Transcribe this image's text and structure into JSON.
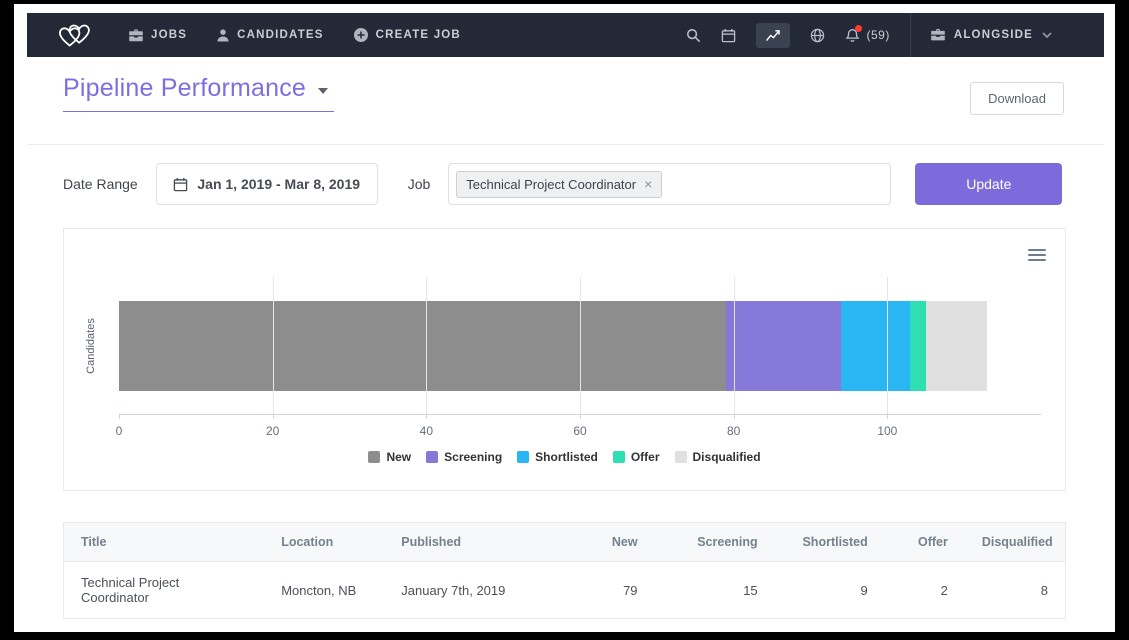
{
  "navbar": {
    "bg": "#232936",
    "logo": "alongside-logo",
    "items": [
      {
        "icon": "briefcase-icon",
        "label": "JOBS"
      },
      {
        "icon": "person-icon",
        "label": "CANDIDATES"
      },
      {
        "icon": "plus-circle-icon",
        "label": "CREATE JOB"
      }
    ],
    "tools": [
      {
        "icon": "search-icon",
        "name": "search",
        "active": false
      },
      {
        "icon": "calendar-icon",
        "name": "calendar",
        "active": false
      },
      {
        "icon": "chart-icon",
        "name": "reports",
        "active": true
      },
      {
        "icon": "globe-icon",
        "name": "globe",
        "active": false
      },
      {
        "icon": "bell-icon",
        "name": "notifications",
        "active": false,
        "badge": "(59)",
        "dot_color": "#ff3b30"
      }
    ],
    "account_label": "ALONGSIDE"
  },
  "header": {
    "title": "Pipeline Performance",
    "accent_color": "#7d6ee2",
    "download_label": "Download"
  },
  "filters": {
    "date_range_label": "Date Range",
    "date_range_value": "Jan 1, 2019 - Mar 8, 2019",
    "job_label": "Job",
    "job_tag": "Technical Project Coordinator",
    "update_label": "Update",
    "update_color": "#7e6bdb"
  },
  "chart_data": {
    "type": "bar",
    "orientation": "horizontal",
    "stacked": true,
    "title": "",
    "xlabel": "",
    "ylabel": "Candidates",
    "categories": [
      "Candidates"
    ],
    "series": [
      {
        "name": "New",
        "values": [
          79
        ],
        "color": "#8d8d8d"
      },
      {
        "name": "Screening",
        "values": [
          15
        ],
        "color": "#8678d8"
      },
      {
        "name": "Shortlisted",
        "values": [
          9
        ],
        "color": "#29b6f3"
      },
      {
        "name": "Offer",
        "values": [
          2
        ],
        "color": "#2ddfb2"
      },
      {
        "name": "Disqualified",
        "values": [
          8
        ],
        "color": "#e0e0e0"
      }
    ],
    "xlim": [
      0,
      120
    ],
    "xticks": [
      0,
      20,
      40,
      60,
      80,
      100
    ],
    "grid": true,
    "legend_position": "bottom"
  },
  "table": {
    "columns": [
      {
        "label": "Title",
        "align": "left",
        "width": "20%"
      },
      {
        "label": "Location",
        "align": "left",
        "width": "12%"
      },
      {
        "label": "Published",
        "align": "left",
        "width": "18%"
      },
      {
        "label": "New",
        "align": "right",
        "width": "9%"
      },
      {
        "label": "Screening",
        "align": "right",
        "width": "12%"
      },
      {
        "label": "Shortlisted",
        "align": "right",
        "width": "11%"
      },
      {
        "label": "Offer",
        "align": "right",
        "width": "8%"
      },
      {
        "label": "Disqualified",
        "align": "right",
        "width": "10%"
      }
    ],
    "rows": [
      [
        "Technical Project Coordinator",
        "Moncton, NB",
        "January 7th, 2019",
        "79",
        "15",
        "9",
        "2",
        "8"
      ]
    ]
  }
}
